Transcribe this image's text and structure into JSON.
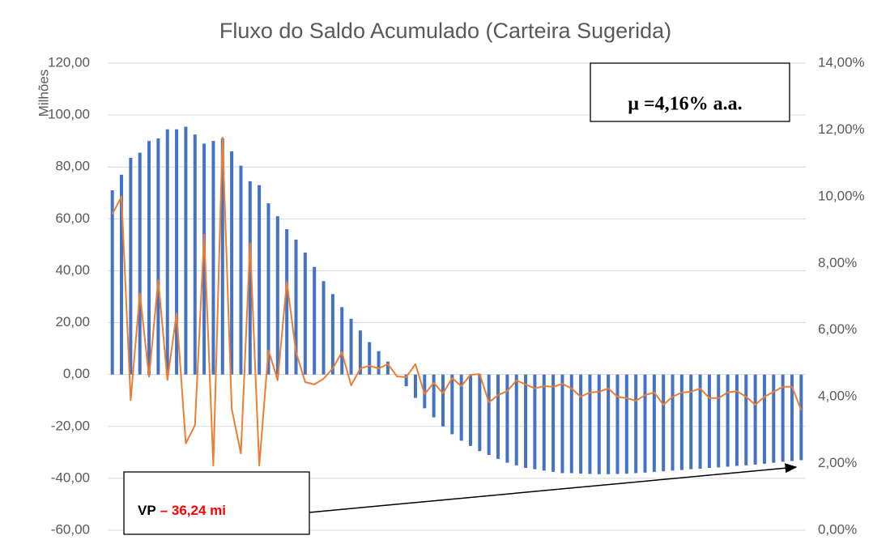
{
  "chart_data": {
    "type": "bar_line",
    "title": "Fluxo do Saldo Acumulado (Carteira Sugerida)",
    "y_label": "Milhões",
    "categories": [
      null,
      null,
      null,
      null,
      null,
      null,
      null,
      null,
      null,
      null,
      null,
      null,
      null,
      null,
      null,
      null,
      null,
      null,
      null,
      null,
      null,
      null,
      null,
      null,
      null,
      null,
      null,
      null,
      null,
      null,
      null,
      null,
      null,
      null,
      null,
      null,
      null,
      null,
      null,
      null,
      null,
      null,
      null,
      null,
      null,
      null,
      null,
      null,
      null,
      null,
      null,
      null,
      null,
      null,
      null,
      null,
      null,
      null,
      null,
      null,
      null,
      null,
      null,
      null,
      null,
      null,
      null,
      null,
      null,
      null,
      null,
      null,
      null,
      null,
      null,
      null
    ],
    "series": [
      {
        "type": "bar",
        "color": "#4472c4",
        "values": [
          71,
          77,
          83.5,
          85.5,
          90,
          91,
          94.5,
          94.5,
          95.5,
          92.5,
          89,
          90,
          91,
          86,
          80.5,
          74.5,
          73,
          66,
          61,
          56,
          52,
          47,
          41.5,
          36,
          31,
          26,
          21.5,
          17,
          12.5,
          9,
          5,
          0,
          -4.5,
          -9,
          -13,
          -16.5,
          -20,
          -23,
          -25.5,
          -27.5,
          -29.5,
          -31,
          -32.5,
          -34,
          -35,
          -36,
          -36.5,
          -37,
          -37.5,
          -38,
          -38,
          -38.2,
          -38.3,
          -38.4,
          -38.4,
          -38.3,
          -38.2,
          -38,
          -37.8,
          -37.5,
          -37.3,
          -37,
          -36.8,
          -36.5,
          -36.3,
          -36,
          -35.8,
          -35.5,
          -35.2,
          -35,
          -34.7,
          -34.4,
          -34,
          -33.6,
          -33.3,
          -33
        ]
      },
      {
        "type": "line",
        "axis": "y2",
        "color": "#ed7d31",
        "values": [
          9.47,
          10.0,
          3.9,
          7.1,
          4.6,
          7.5,
          4.5,
          6.5,
          2.6,
          3.15,
          8.86,
          1.94,
          11.77,
          3.64,
          2.3,
          8.6,
          1.94,
          5.4,
          4.5,
          7.45,
          5.34,
          4.44,
          4.37,
          4.54,
          4.85,
          5.34,
          4.34,
          4.85,
          4.93,
          4.85,
          4.98,
          4.61,
          4.59,
          4.98,
          4.08,
          4.42,
          4.1,
          4.56,
          4.32,
          4.66,
          4.68,
          3.83,
          4.05,
          4.17,
          4.49,
          4.37,
          4.25,
          4.32,
          4.3,
          4.39,
          4.25,
          4.0,
          4.13,
          4.15,
          4.25,
          4.0,
          3.96,
          3.88,
          4.05,
          4.13,
          3.76,
          4.0,
          4.13,
          4.15,
          4.25,
          3.96,
          3.96,
          4.13,
          4.17,
          4.0,
          3.76,
          4.0,
          4.15,
          4.3,
          4.3,
          3.6
        ]
      }
    ],
    "ylim": [
      -60,
      120
    ],
    "yticks": [
      {
        "value": -60,
        "label": "-60,00"
      },
      {
        "value": -40,
        "label": "-40,00"
      },
      {
        "value": -20,
        "label": "-20,00"
      },
      {
        "value": 0,
        "label": "0,00"
      },
      {
        "value": 20,
        "label": "20,00"
      },
      {
        "value": 40,
        "label": "40,00"
      },
      {
        "value": 60,
        "label": "60,00"
      },
      {
        "value": 80,
        "label": "80,00"
      },
      {
        "value": 100,
        "label": "100,00"
      },
      {
        "value": 120,
        "label": "120,00"
      }
    ],
    "y2lim": [
      0,
      14
    ],
    "y2ticks": [
      {
        "value": 0,
        "label": "0,00%"
      },
      {
        "value": 2,
        "label": "2,00%"
      },
      {
        "value": 4,
        "label": "4,00%"
      },
      {
        "value": 6,
        "label": "6,00%"
      },
      {
        "value": 8,
        "label": "8,00%"
      },
      {
        "value": 10,
        "label": "10,00%"
      },
      {
        "value": 12,
        "label": "12,00%"
      },
      {
        "value": 14,
        "label": "14,00%"
      }
    ],
    "grid": true,
    "annotations": [
      {
        "text": "μ =4,16% a.a."
      },
      {
        "text": "VP",
        "highlight": "– 36,24 mi"
      }
    ]
  }
}
